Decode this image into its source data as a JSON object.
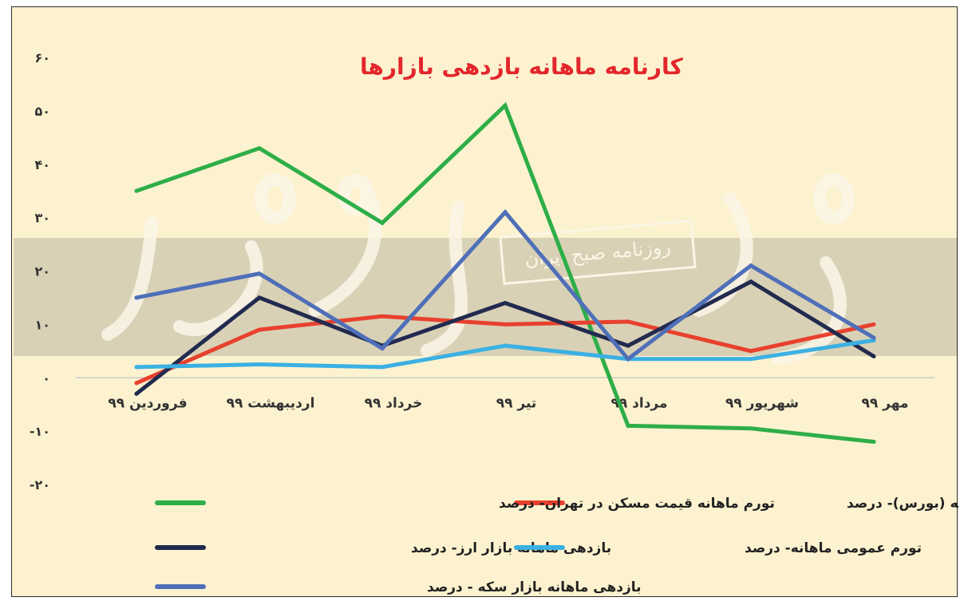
{
  "chart_data": {
    "type": "line",
    "title": "کارنامه ماهانه بازدهی بازارها",
    "watermark": "روزنامه صبح ایران",
    "categories": [
      "فروردین ۹۹",
      "اردیبهشت ۹۹",
      "خرداد ۹۹",
      "تیر ۹۹",
      "مرداد ۹۹",
      "شهریور ۹۹",
      "مهر ۹۹"
    ],
    "ylim": [
      -20,
      60
    ],
    "yticks": [
      "-۲۰",
      "-۱۰",
      "۰",
      "۱۰",
      "۲۰",
      "۳۰",
      "۴۰",
      "۵۰",
      "۶۰"
    ],
    "ytick_values": [
      -20,
      -10,
      0,
      10,
      20,
      30,
      40,
      50,
      60
    ],
    "grid": false,
    "series": [
      {
        "name": "بازدهی ماهانه بازار سرمایه (بورس)- درصد",
        "color": "#2eae48",
        "values": [
          35,
          43,
          29,
          51,
          -9,
          -9.5,
          -12
        ]
      },
      {
        "name": "تورم ماهانه قیمت مسکن در تهران- درصد",
        "color": "#e8412e",
        "values": [
          -1,
          9,
          11.5,
          10,
          10.5,
          5,
          10
        ]
      },
      {
        "name": "بازدهی ماهانه بازار ارز- درصد",
        "color": "#222a4f",
        "values": [
          -3,
          15,
          6,
          14,
          6,
          18,
          4
        ]
      },
      {
        "name": "تورم عمومی ماهانه- درصد",
        "color": "#3bb0e3",
        "values": [
          2,
          2.5,
          2,
          6,
          3.5,
          3.5,
          7
        ]
      },
      {
        "name": "بازدهی ماهانه بازار سکه - درصد",
        "color": "#4f6fb8",
        "values": [
          15,
          19.5,
          5.5,
          31,
          3.5,
          21,
          7.5
        ]
      }
    ]
  }
}
